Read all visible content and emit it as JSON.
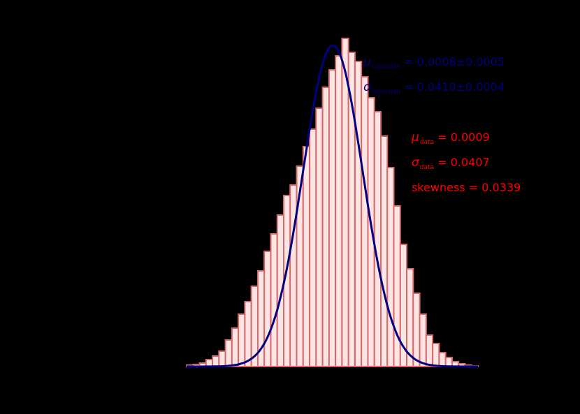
{
  "chart_data": {
    "type": "bar",
    "subtype": "histogram_with_gaussian_fit",
    "title": "",
    "xlabel": "",
    "ylabel": "",
    "background": "#000000",
    "bar_fill": "#ffe4e4",
    "bar_edge": "#d46a6a",
    "fit_color": "#000080",
    "bins": 45,
    "x_range": [
      -0.2,
      0.2
    ],
    "counts": [
      2,
      3,
      5,
      10,
      15,
      22,
      38,
      55,
      75,
      93,
      115,
      137,
      165,
      190,
      217,
      245,
      260,
      287,
      315,
      340,
      370,
      400,
      425,
      445,
      470,
      450,
      437,
      415,
      385,
      365,
      330,
      285,
      230,
      175,
      140,
      105,
      75,
      45,
      33,
      20,
      13,
      7,
      4,
      2,
      1
    ],
    "fit": {
      "mu": 0.0008,
      "sigma": 0.041,
      "peak": 460
    },
    "legend": []
  },
  "annotations": {
    "gaussian": {
      "mu_symbol": "μ",
      "mu_sub": "Gaussian",
      "mu_text": " = 0.0008±0.0005",
      "sigma_symbol": "σ",
      "sigma_sub": "Gaussian",
      "sigma_text": " = 0.0410±0.0004"
    },
    "data": {
      "mu_symbol": "μ",
      "mu_sub": "data",
      "mu_text": " = 0.0009",
      "sigma_symbol": "σ",
      "sigma_sub": "data",
      "sigma_text": " = 0.0407",
      "skewness_text": "skewness = 0.0339"
    }
  }
}
